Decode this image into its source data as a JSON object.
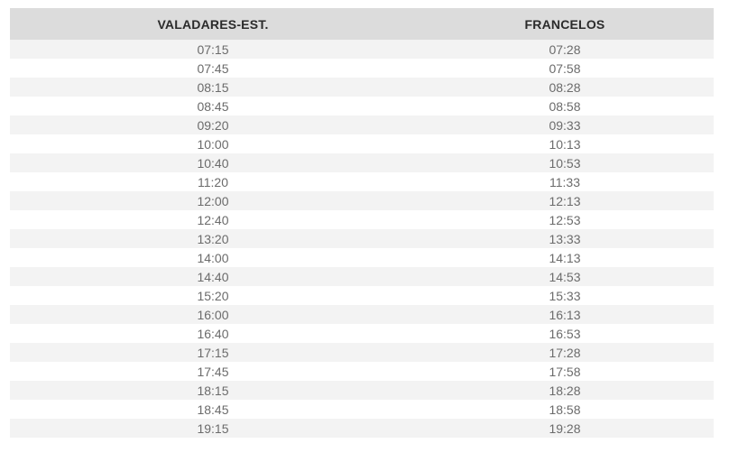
{
  "headers": [
    "VALADARES-EST.",
    "FRANCELOS"
  ],
  "rows": [
    [
      "07:15",
      "07:28"
    ],
    [
      "07:45",
      "07:58"
    ],
    [
      "08:15",
      "08:28"
    ],
    [
      "08:45",
      "08:58"
    ],
    [
      "09:20",
      "09:33"
    ],
    [
      "10:00",
      "10:13"
    ],
    [
      "10:40",
      "10:53"
    ],
    [
      "11:20",
      "11:33"
    ],
    [
      "12:00",
      "12:13"
    ],
    [
      "12:40",
      "12:53"
    ],
    [
      "13:20",
      "13:33"
    ],
    [
      "14:00",
      "14:13"
    ],
    [
      "14:40",
      "14:53"
    ],
    [
      "15:20",
      "15:33"
    ],
    [
      "16:00",
      "16:13"
    ],
    [
      "16:40",
      "16:53"
    ],
    [
      "17:15",
      "17:28"
    ],
    [
      "17:45",
      "17:58"
    ],
    [
      "18:15",
      "18:28"
    ],
    [
      "18:45",
      "18:58"
    ],
    [
      "19:15",
      "19:28"
    ]
  ]
}
